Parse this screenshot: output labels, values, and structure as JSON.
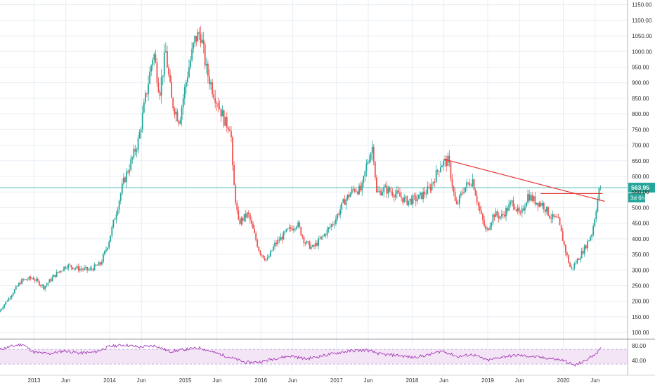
{
  "chart_data": {
    "type": "candlestick",
    "title": "",
    "xlabel": "",
    "ylabel": "",
    "ylim": [
      80,
      1165
    ],
    "price_ticks": [
      100,
      150,
      200,
      250,
      300,
      350,
      400,
      450,
      500,
      550,
      600,
      650,
      700,
      750,
      800,
      850,
      900,
      950,
      1000,
      1050,
      1100,
      1150
    ],
    "price_tick_labels": [
      "100.00",
      "150.00",
      "200.00",
      "250.00",
      "300.00",
      "350.00",
      "400.00",
      "450.00",
      "500.00",
      "550.00",
      "600.00",
      "650.00",
      "700.00",
      "750.00",
      "800.00",
      "850.00",
      "900.00",
      "950.00",
      "1000.00",
      "1050.00",
      "1100.00",
      "1150.00"
    ],
    "x_range": [
      2012.55,
      2020.85
    ],
    "time_ticks": [
      {
        "t": 2013.0,
        "label": "2013"
      },
      {
        "t": 2013.42,
        "label": "Jun"
      },
      {
        "t": 2014.0,
        "label": "2014"
      },
      {
        "t": 2014.42,
        "label": "Jun"
      },
      {
        "t": 2015.0,
        "label": "2015"
      },
      {
        "t": 2015.42,
        "label": "Jun"
      },
      {
        "t": 2016.0,
        "label": "2016"
      },
      {
        "t": 2016.42,
        "label": "Jun"
      },
      {
        "t": 2017.0,
        "label": "2017"
      },
      {
        "t": 2017.42,
        "label": "Jun"
      },
      {
        "t": 2018.0,
        "label": "2018"
      },
      {
        "t": 2018.42,
        "label": "Jun"
      },
      {
        "t": 2019.0,
        "label": "2019"
      },
      {
        "t": 2019.42,
        "label": "Jun"
      },
      {
        "t": 2020.0,
        "label": "2020"
      },
      {
        "t": 2020.42,
        "label": "Jun"
      }
    ],
    "price_path": [
      [
        2012.55,
        165
      ],
      [
        2012.7,
        215
      ],
      [
        2012.85,
        265
      ],
      [
        2013.0,
        275
      ],
      [
        2013.15,
        245
      ],
      [
        2013.3,
        285
      ],
      [
        2013.45,
        315
      ],
      [
        2013.6,
        305
      ],
      [
        2013.75,
        300
      ],
      [
        2013.9,
        320
      ],
      [
        2014.0,
        385
      ],
      [
        2014.1,
        480
      ],
      [
        2014.2,
        580
      ],
      [
        2014.3,
        645
      ],
      [
        2014.4,
        715
      ],
      [
        2014.5,
        860
      ],
      [
        2014.6,
        1000
      ],
      [
        2014.68,
        870
      ],
      [
        2014.76,
        1000
      ],
      [
        2014.84,
        840
      ],
      [
        2014.94,
        780
      ],
      [
        2015.05,
        930
      ],
      [
        2015.15,
        1040
      ],
      [
        2015.22,
        1060
      ],
      [
        2015.3,
        940
      ],
      [
        2015.38,
        880
      ],
      [
        2015.46,
        830
      ],
      [
        2015.55,
        770
      ],
      [
        2015.62,
        760
      ],
      [
        2015.65,
        600
      ],
      [
        2015.72,
        450
      ],
      [
        2015.85,
        480
      ],
      [
        2016.0,
        360
      ],
      [
        2016.1,
        330
      ],
      [
        2016.2,
        380
      ],
      [
        2016.35,
        420
      ],
      [
        2016.5,
        450
      ],
      [
        2016.6,
        390
      ],
      [
        2016.7,
        370
      ],
      [
        2016.85,
        410
      ],
      [
        2017.0,
        460
      ],
      [
        2017.12,
        520
      ],
      [
        2017.25,
        560
      ],
      [
        2017.35,
        555
      ],
      [
        2017.42,
        640
      ],
      [
        2017.5,
        700
      ],
      [
        2017.55,
        545
      ],
      [
        2017.65,
        560
      ],
      [
        2017.8,
        545
      ],
      [
        2017.95,
        520
      ],
      [
        2018.1,
        530
      ],
      [
        2018.25,
        560
      ],
      [
        2018.4,
        640
      ],
      [
        2018.5,
        650
      ],
      [
        2018.6,
        500
      ],
      [
        2018.7,
        560
      ],
      [
        2018.82,
        590
      ],
      [
        2018.9,
        500
      ],
      [
        2019.0,
        420
      ],
      [
        2019.1,
        480
      ],
      [
        2019.2,
        470
      ],
      [
        2019.35,
        520
      ],
      [
        2019.45,
        470
      ],
      [
        2019.55,
        540
      ],
      [
        2019.65,
        520
      ],
      [
        2019.75,
        510
      ],
      [
        2019.85,
        470
      ],
      [
        2019.95,
        460
      ],
      [
        2020.05,
        360
      ],
      [
        2020.12,
        300
      ],
      [
        2020.2,
        330
      ],
      [
        2020.3,
        370
      ],
      [
        2020.4,
        420
      ],
      [
        2020.5,
        563.95
      ]
    ],
    "rsi_ticks": [
      40,
      80
    ],
    "rsi_tick_labels": [
      "40.00",
      "80.00"
    ],
    "rsi_band": [
      30,
      70
    ],
    "rsi_range": [
      15,
      95
    ],
    "rsi_path": [
      [
        2012.55,
        70
      ],
      [
        2012.7,
        78
      ],
      [
        2012.85,
        84
      ],
      [
        2013.0,
        62
      ],
      [
        2013.2,
        58
      ],
      [
        2013.4,
        66
      ],
      [
        2013.6,
        60
      ],
      [
        2013.8,
        62
      ],
      [
        2014.0,
        78
      ],
      [
        2014.2,
        82
      ],
      [
        2014.4,
        76
      ],
      [
        2014.6,
        80
      ],
      [
        2014.8,
        64
      ],
      [
        2015.0,
        70
      ],
      [
        2015.2,
        74
      ],
      [
        2015.4,
        60
      ],
      [
        2015.6,
        48
      ],
      [
        2015.8,
        34
      ],
      [
        2016.0,
        36
      ],
      [
        2016.2,
        46
      ],
      [
        2016.4,
        52
      ],
      [
        2016.6,
        44
      ],
      [
        2016.8,
        52
      ],
      [
        2017.0,
        60
      ],
      [
        2017.2,
        66
      ],
      [
        2017.4,
        68
      ],
      [
        2017.6,
        56
      ],
      [
        2017.8,
        54
      ],
      [
        2018.0,
        48
      ],
      [
        2018.2,
        54
      ],
      [
        2018.4,
        66
      ],
      [
        2018.6,
        50
      ],
      [
        2018.8,
        56
      ],
      [
        2019.0,
        40
      ],
      [
        2019.2,
        50
      ],
      [
        2019.4,
        54
      ],
      [
        2019.6,
        50
      ],
      [
        2019.8,
        46
      ],
      [
        2020.0,
        40
      ],
      [
        2020.15,
        26
      ],
      [
        2020.3,
        40
      ],
      [
        2020.45,
        62
      ],
      [
        2020.5,
        72
      ]
    ],
    "annotations": {
      "trendline": [
        [
          2018.42,
          655
        ],
        [
          2020.55,
          520
        ]
      ],
      "resistance": [
        [
          2019.7,
          545
        ],
        [
          2020.52,
          545
        ]
      ],
      "last_price_label": "563.95",
      "countdown_label": "3d 6h"
    },
    "colors": {
      "up": "#26a69a",
      "down": "#ef5350",
      "trendline": "#e53935",
      "last_price_line": "#26a69a",
      "rsi_line": "#9c27b0",
      "rsi_band_fill": "#f3e5f5",
      "grid": "#e8eef3",
      "axis_text": "#333333"
    }
  }
}
